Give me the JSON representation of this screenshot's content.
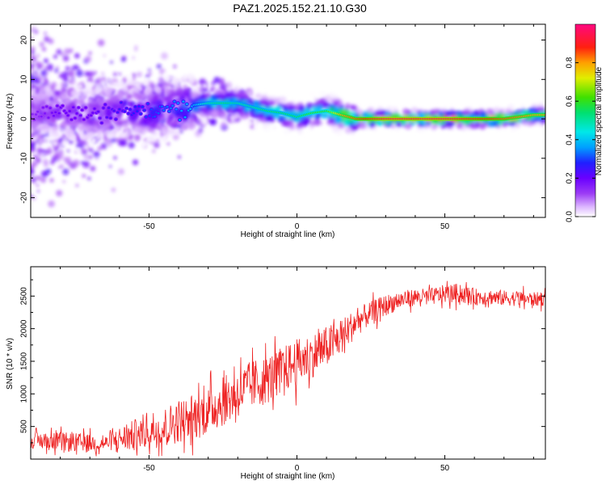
{
  "title": "PAZ1.2025.152.21.10.G30",
  "colors": {
    "snr_line": "#ee2222",
    "background": "#ffffff"
  },
  "chart_data": [
    {
      "type": "heatmap",
      "xlabel": "Height of straight line (km)",
      "ylabel": "Frequency (Hz)",
      "xlim": [
        -90,
        84
      ],
      "ylim": [
        -25,
        24
      ],
      "xticks": [
        -50,
        0,
        50
      ],
      "yticks": [
        -20,
        -10,
        0,
        10,
        20
      ],
      "colorbar": {
        "label": "Normalized spectral amplitude",
        "range": [
          0,
          1
        ],
        "ticks": [
          0.0,
          0.2,
          0.4,
          0.6,
          0.8
        ],
        "colormap": "rainbow (white-violet-blue-cyan-green-yellow-red-pink)"
      },
      "dominant_ridge": {
        "x": [
          -90,
          -80,
          -70,
          -60,
          -50,
          -40,
          -35,
          -30,
          -25,
          -20,
          -15,
          -10,
          -5,
          0,
          5,
          10,
          15,
          20,
          25,
          30,
          40,
          50,
          60,
          70,
          80,
          84
        ],
        "y": [
          1.5,
          2.0,
          1.0,
          2.5,
          1.5,
          3.0,
          3.5,
          4.0,
          4.0,
          4.0,
          3.0,
          2.0,
          1.5,
          0.5,
          1.5,
          2.0,
          1.0,
          0.0,
          0.0,
          0.0,
          0.0,
          0.0,
          0.0,
          0.0,
          1.0,
          1.0
        ],
        "amplitude": [
          0.15,
          0.2,
          0.2,
          0.25,
          0.3,
          0.35,
          0.4,
          0.5,
          0.55,
          0.5,
          0.5,
          0.55,
          0.55,
          0.55,
          0.6,
          0.6,
          0.8,
          0.85,
          0.9,
          0.95,
          0.95,
          0.95,
          0.9,
          0.85,
          0.8,
          0.8
        ]
      }
    },
    {
      "type": "line",
      "xlabel": "Height of straight line (km)",
      "ylabel": "SNR (10 * v/v)",
      "xlim": [
        -90,
        84
      ],
      "ylim": [
        0,
        2950
      ],
      "xticks": [
        -50,
        0,
        50
      ],
      "yticks": [
        500,
        1000,
        1500,
        2000,
        2500
      ],
      "series": [
        {
          "x": [
            -90,
            -80,
            -70,
            -65,
            -60,
            -55,
            -50,
            -45,
            -40,
            -35,
            -30,
            -25,
            -20,
            -15,
            -10,
            -5,
            0,
            5,
            10,
            15,
            20,
            25,
            30,
            35,
            40,
            45,
            50,
            55,
            60,
            65,
            70,
            75,
            80,
            84
          ],
          "y": [
            300,
            280,
            260,
            250,
            330,
            380,
            480,
            520,
            620,
            680,
            780,
            920,
            1050,
            1180,
            1260,
            1400,
            1520,
            1620,
            1750,
            1900,
            2120,
            2260,
            2380,
            2450,
            2500,
            2500,
            2550,
            2560,
            2500,
            2500,
            2480,
            2480,
            2460,
            2470
          ],
          "noise": [
            120,
            150,
            140,
            110,
            180,
            250,
            300,
            300,
            340,
            360,
            360,
            380,
            380,
            380,
            380,
            360,
            360,
            340,
            320,
            280,
            220,
            180,
            160,
            140,
            130,
            130,
            140,
            150,
            130,
            120,
            120,
            120,
            110,
            110
          ]
        }
      ]
    }
  ]
}
